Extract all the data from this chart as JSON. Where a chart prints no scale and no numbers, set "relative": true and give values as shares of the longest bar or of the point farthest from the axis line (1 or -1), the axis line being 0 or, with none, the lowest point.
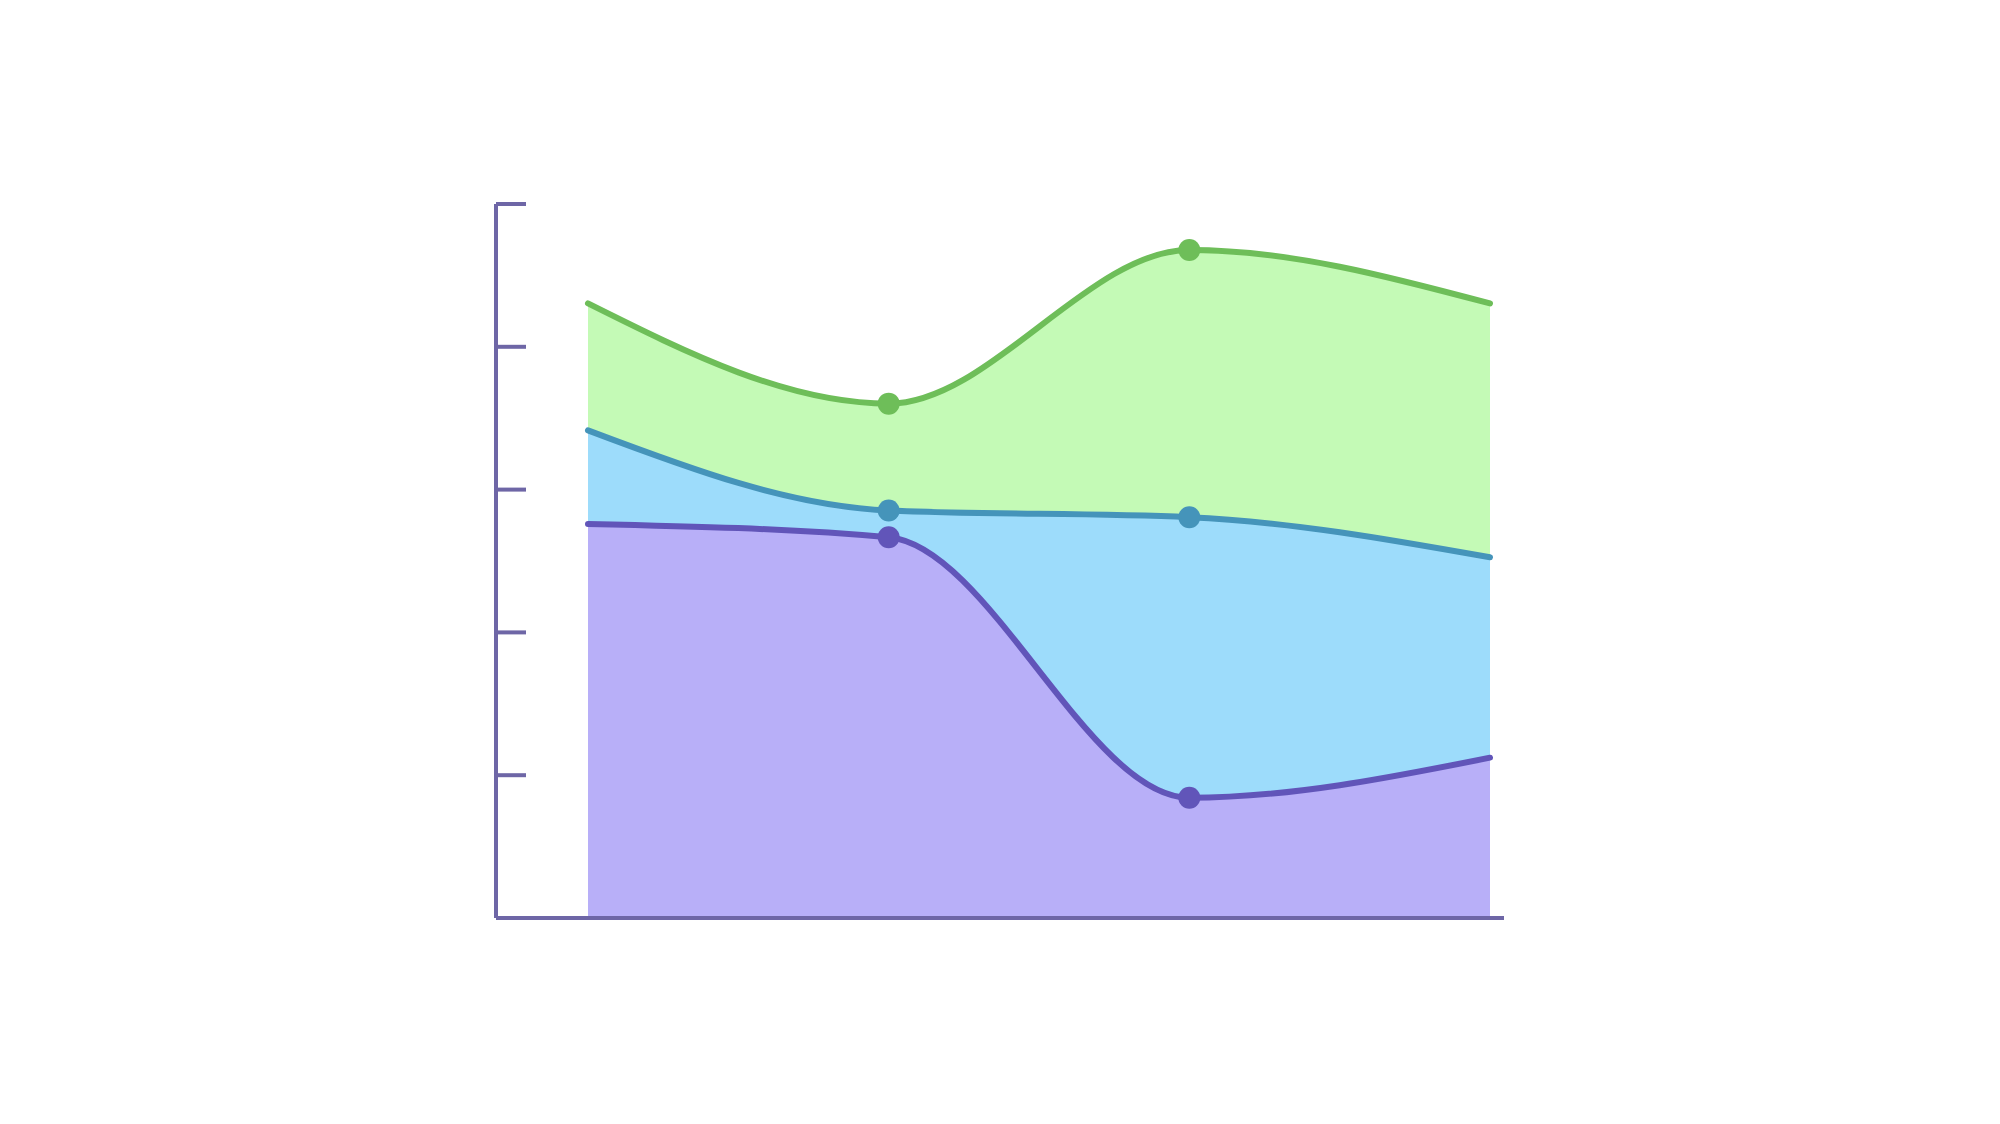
{
  "chart_data": {
    "type": "area",
    "relative": true,
    "categories": [
      null,
      null,
      null,
      null
    ],
    "series": [
      {
        "color": "#c4fab6",
        "values": [
          0.92,
          0.77,
          1.0,
          0.92
        ]
      },
      {
        "color": "#9ddcfb",
        "values": [
          0.73,
          0.61,
          0.6,
          0.54
        ]
      },
      {
        "color": "#b8aff8",
        "values": [
          0.59,
          0.57,
          0.18,
          0.24
        ]
      }
    ],
    "marker": "circle",
    "line_style": "solid",
    "grid": false
  }
}
